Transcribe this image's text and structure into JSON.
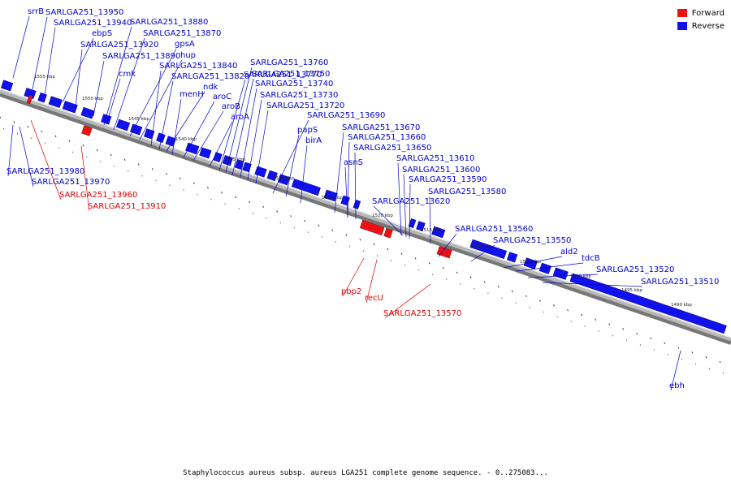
{
  "legend": {
    "forward_label": "Forward",
    "reverse_label": "Reverse",
    "forward_color": "#ee1111",
    "reverse_color": "#1111ee"
  },
  "caption": "Staphylococcus aureus subsp. aureus LGA251 complete genome sequence. - 0..275083...",
  "scale_ticks": [
    "1555 kbp",
    "1550 kbp",
    "1545 kbp",
    "1540 kbp",
    "1535 kbp",
    "1530 kbp",
    "1525 kbp",
    "1520 kbp",
    "1515 kbp",
    "1510 kbp",
    "1505 kbp",
    "1500 kbp",
    "1495 kbp",
    "1490 kbp"
  ],
  "genes": [
    {
      "label": "srrB",
      "strand": "reverse"
    },
    {
      "label": "SARLGA251_13950",
      "strand": "reverse"
    },
    {
      "label": "SARLGA251_13940",
      "strand": "reverse"
    },
    {
      "label": "ebpS",
      "strand": "reverse"
    },
    {
      "label": "SARLGA251_13920",
      "strand": "reverse"
    },
    {
      "label": "SARLGA251_13890",
      "strand": "reverse"
    },
    {
      "label": "cmk",
      "strand": "reverse"
    },
    {
      "label": "SARLGA251_13880",
      "strand": "reverse"
    },
    {
      "label": "SARLGA251_13870",
      "strand": "reverse"
    },
    {
      "label": "gpsA",
      "strand": "reverse"
    },
    {
      "label": "hup",
      "strand": "reverse"
    },
    {
      "label": "SARLGA251_13840",
      "strand": "reverse"
    },
    {
      "label": "SARLGA251_13820",
      "strand": "reverse"
    },
    {
      "label": "ndk",
      "strand": "reverse"
    },
    {
      "label": "menH",
      "strand": "reverse"
    },
    {
      "label": "aroC",
      "strand": "reverse"
    },
    {
      "label": "aroB",
      "strand": "reverse"
    },
    {
      "label": "aroA",
      "strand": "reverse"
    },
    {
      "label": "SARLGA251_13770",
      "strand": "reverse"
    },
    {
      "label": "SARLGA251_13760",
      "strand": "reverse"
    },
    {
      "label": "SARLGA251_13750",
      "strand": "reverse"
    },
    {
      "label": "SARLGA251_13740",
      "strand": "reverse"
    },
    {
      "label": "SARLGA251_13730",
      "strand": "reverse"
    },
    {
      "label": "SARLGA251_13720",
      "strand": "reverse"
    },
    {
      "label": "SARLGA251_13690",
      "strand": "reverse"
    },
    {
      "label": "papS",
      "strand": "reverse"
    },
    {
      "label": "birA",
      "strand": "reverse"
    },
    {
      "label": "SARLGA251_13670",
      "strand": "reverse"
    },
    {
      "label": "SARLGA251_13660",
      "strand": "reverse"
    },
    {
      "label": "SARLGA251_13650",
      "strand": "reverse"
    },
    {
      "label": "asnS",
      "strand": "reverse"
    },
    {
      "label": "SARLGA251_13610",
      "strand": "reverse"
    },
    {
      "label": "SARLGA251_13600",
      "strand": "reverse"
    },
    {
      "label": "SARLGA251_13590",
      "strand": "reverse"
    },
    {
      "label": "SARLGA251_13580",
      "strand": "reverse"
    },
    {
      "label": "SARLGA251_13620",
      "strand": "reverse"
    },
    {
      "label": "SARLGA251_13560",
      "strand": "reverse"
    },
    {
      "label": "SARLGA251_13550",
      "strand": "reverse"
    },
    {
      "label": "ald2",
      "strand": "reverse"
    },
    {
      "label": "tdcB",
      "strand": "reverse"
    },
    {
      "label": "SARLGA251_13520",
      "strand": "reverse"
    },
    {
      "label": "SARLGA251_13510",
      "strand": "reverse"
    },
    {
      "label": "ebh",
      "strand": "reverse"
    },
    {
      "label": "SARLGA251_13980",
      "strand": "reverse"
    },
    {
      "label": "SARLGA251_13970",
      "strand": "reverse"
    },
    {
      "label": "SARLGA251_13960",
      "strand": "forward"
    },
    {
      "label": "SARLGA251_13910",
      "strand": "forward"
    },
    {
      "label": "pbp2",
      "strand": "forward"
    },
    {
      "label": "recU",
      "strand": "forward"
    },
    {
      "label": "SARLGA251_13570",
      "strand": "forward"
    }
  ]
}
